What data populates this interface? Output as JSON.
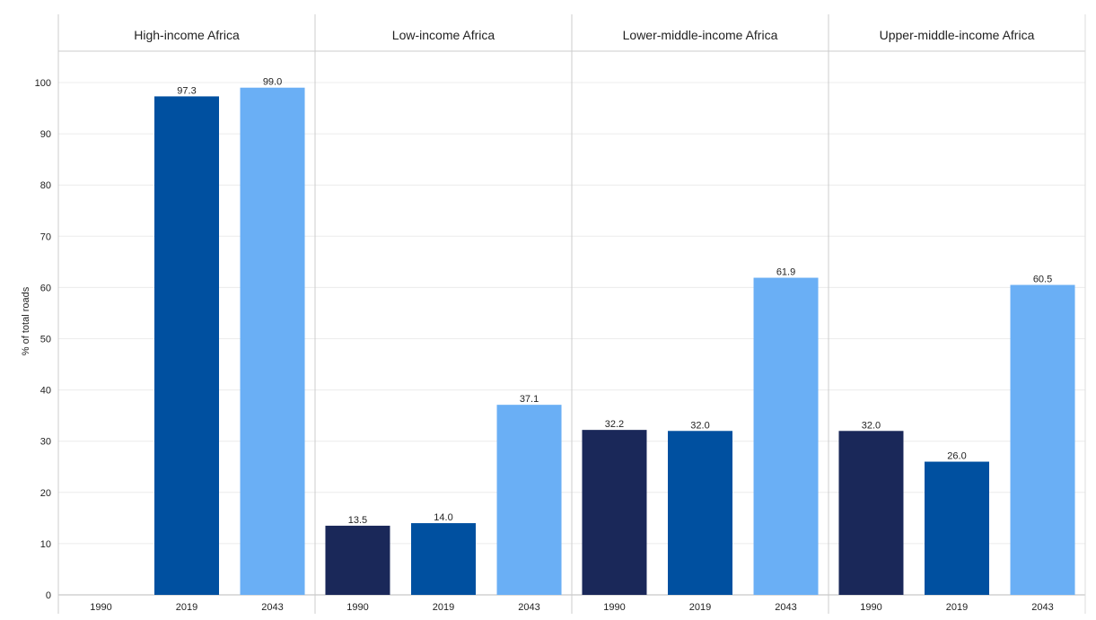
{
  "chart_data": {
    "type": "bar",
    "ylabel": "% of total roads",
    "ylim": [
      0,
      100
    ],
    "yticks": [
      0,
      10,
      20,
      30,
      40,
      50,
      60,
      70,
      80,
      90,
      100
    ],
    "grid": true,
    "categories": [
      "1990",
      "2019",
      "2043"
    ],
    "colors": [
      "#1a2859",
      "#0050a0",
      "#6aaff5"
    ],
    "panels": [
      {
        "title": "High-income Africa",
        "values": [
          null,
          97.3,
          99.0
        ],
        "labels": [
          "",
          "97.3",
          "99.0"
        ]
      },
      {
        "title": "Low-income Africa",
        "values": [
          13.5,
          14.0,
          37.1
        ],
        "labels": [
          "13.5",
          "14.0",
          "37.1"
        ]
      },
      {
        "title": "Lower-middle-income Africa",
        "values": [
          32.2,
          32.0,
          61.9
        ],
        "labels": [
          "32.2",
          "32.0",
          "61.9"
        ]
      },
      {
        "title": "Upper-middle-income Africa",
        "values": [
          32.0,
          26.0,
          60.5
        ],
        "labels": [
          "32.0",
          "26.0",
          "60.5"
        ]
      }
    ]
  }
}
